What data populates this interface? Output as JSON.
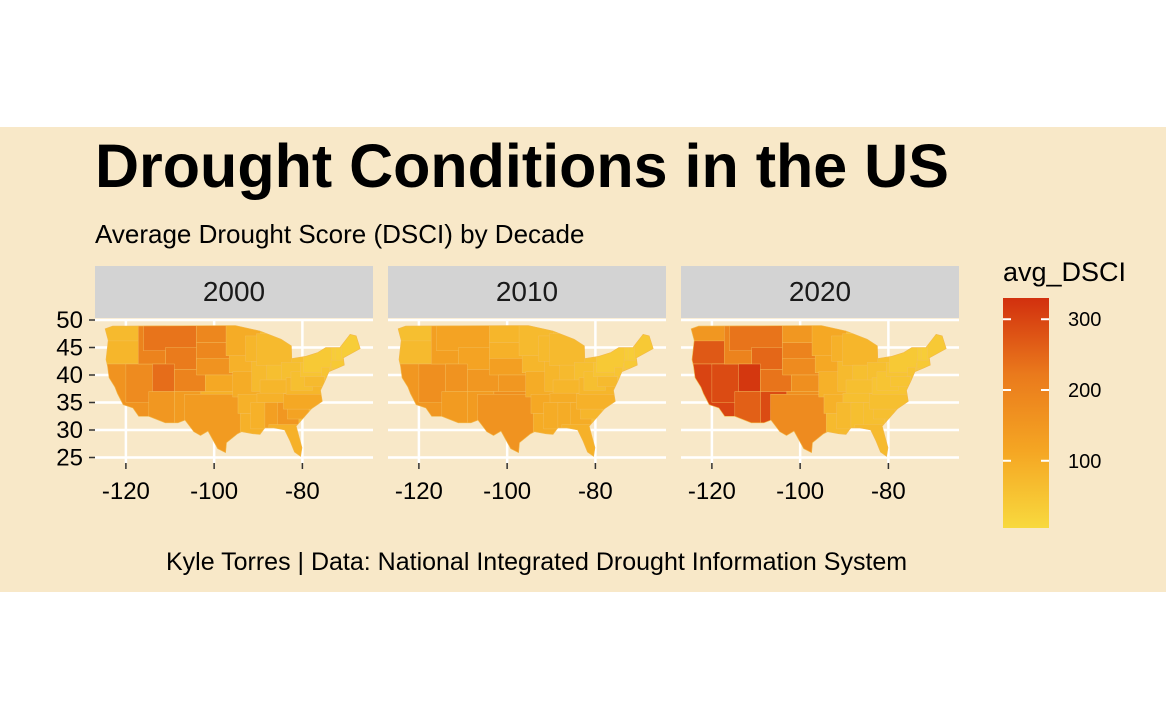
{
  "chart_data": {
    "type": "choropleth-map",
    "title": "Drought Conditions in the US",
    "subtitle": "Average Drought Score (DSCI) by Decade",
    "caption": "Kyle Torres | Data: National Integrated Drought Information System",
    "facets": [
      "2000",
      "2010",
      "2020"
    ],
    "x_ticks": [
      -120,
      -100,
      -80
    ],
    "x_tick_labels": [
      "-120",
      "-100",
      "-80"
    ],
    "y_ticks": [
      25,
      30,
      35,
      40,
      45,
      50
    ],
    "y_tick_labels": [
      "25",
      "30",
      "35",
      "40",
      "45",
      "50"
    ],
    "xlim": [
      -127,
      -64
    ],
    "ylim": [
      24,
      50
    ],
    "legend": {
      "title": "avg_DSCI",
      "position": "right",
      "breaks": [
        100,
        200,
        300
      ],
      "break_labels": [
        "100",
        "200",
        "300"
      ],
      "range": [
        5,
        330
      ],
      "colors": [
        "#f8d93e",
        "#f5a623",
        "#ea7a1c",
        "#d2300e"
      ]
    },
    "colors": {
      "panel_background": "#f8e8c8",
      "strip_background": "#d3d3d3",
      "grid": "#ffffff"
    },
    "states": {
      "WA": [
        70,
        60,
        150
      ],
      "OR": [
        80,
        70,
        270
      ],
      "CA": [
        160,
        150,
        300
      ],
      "NV": [
        180,
        170,
        290
      ],
      "ID": [
        200,
        130,
        200
      ],
      "MT": [
        230,
        120,
        230
      ],
      "WY": [
        220,
        120,
        250
      ],
      "UT": [
        240,
        160,
        320
      ],
      "CO": [
        200,
        150,
        230
      ],
      "AZ": [
        150,
        140,
        260
      ],
      "NM": [
        140,
        140,
        290
      ],
      "ND": [
        190,
        80,
        150
      ],
      "SD": [
        190,
        90,
        200
      ],
      "NE": [
        160,
        130,
        180
      ],
      "KS": [
        110,
        150,
        170
      ],
      "OK": [
        90,
        170,
        170
      ],
      "TX": [
        140,
        160,
        180
      ],
      "MN": [
        100,
        70,
        110
      ],
      "IA": [
        90,
        80,
        110
      ],
      "MO": [
        100,
        100,
        90
      ],
      "AR": [
        90,
        110,
        90
      ],
      "LA": [
        90,
        100,
        70
      ],
      "WI": [
        80,
        70,
        90
      ],
      "IL": [
        70,
        80,
        70
      ],
      "MI": [
        70,
        70,
        80
      ],
      "IN": [
        60,
        70,
        60
      ],
      "OH": [
        60,
        60,
        60
      ],
      "KY": [
        80,
        80,
        60
      ],
      "TN": [
        90,
        100,
        60
      ],
      "MS": [
        90,
        100,
        70
      ],
      "AL": [
        130,
        100,
        60
      ],
      "GA": [
        150,
        100,
        60
      ],
      "FL": [
        90,
        90,
        70
      ],
      "SC": [
        120,
        80,
        60
      ],
      "NC": [
        110,
        90,
        60
      ],
      "VA": [
        80,
        80,
        50
      ],
      "WV": [
        60,
        60,
        50
      ],
      "PA": [
        50,
        50,
        50
      ],
      "NY": [
        40,
        40,
        40
      ],
      "NJ": [
        50,
        50,
        50
      ],
      "DE": [
        60,
        60,
        50
      ],
      "MD": [
        70,
        70,
        50
      ],
      "CT": [
        40,
        40,
        40
      ],
      "RI": [
        40,
        40,
        40
      ],
      "MA": [
        40,
        40,
        40
      ],
      "VT": [
        30,
        30,
        30
      ],
      "NH": [
        30,
        30,
        30
      ],
      "ME": [
        30,
        40,
        40
      ]
    }
  }
}
